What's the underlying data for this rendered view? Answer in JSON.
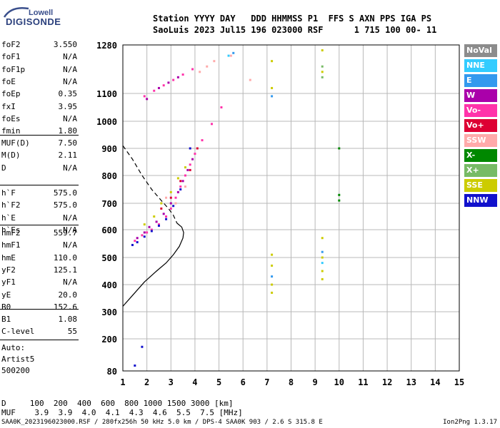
{
  "logo": {
    "top": "Lowell",
    "main": "DIGISONDE"
  },
  "header": {
    "line1": "Station YYYY DAY   DDD HHMMSS P1  FFS S AXN PPS IGA PS",
    "line2": "SaoLuis 2023 Jul15 196 023000 RSF      1 715 100 00- 11"
  },
  "params_a": [
    {
      "label": "foF2",
      "value": "3.550"
    },
    {
      "label": "foF1",
      "value": "N/A"
    },
    {
      "label": "foF1p",
      "value": "N/A"
    },
    {
      "label": "foE",
      "value": "N/A"
    },
    {
      "label": "foEp",
      "value": "0.35"
    },
    {
      "label": "fxI",
      "value": "3.95"
    },
    {
      "label": "foEs",
      "value": "N/A"
    },
    {
      "label": "fmin",
      "value": "1.80"
    }
  ],
  "params_b": [
    {
      "label": "MUF(D)",
      "value": "7.50"
    },
    {
      "label": "M(D)",
      "value": "2.11"
    },
    {
      "label": "D",
      "value": "N/A"
    }
  ],
  "params_c": [
    {
      "label": "h`F",
      "value": "575.0"
    },
    {
      "label": "h`F2",
      "value": "575.0"
    },
    {
      "label": "h`E",
      "value": "N/A"
    },
    {
      "label": "h`Es",
      "value": "N/A"
    }
  ],
  "params_d": [
    {
      "label": "hmF2",
      "value": "559.7"
    },
    {
      "label": "hmF1",
      "value": "N/A"
    },
    {
      "label": "hmE",
      "value": "110.0"
    },
    {
      "label": "yF2",
      "value": "125.1"
    },
    {
      "label": "yF1",
      "value": "N/A"
    },
    {
      "label": "yE",
      "value": "20.0"
    },
    {
      "label": "B0",
      "value": "152.6"
    },
    {
      "label": "B1",
      "value": "1.08"
    }
  ],
  "clevel": {
    "label": "C-level",
    "value": "55"
  },
  "autoscale": [
    "Auto:",
    "Artist5",
    "500200"
  ],
  "legend": [
    {
      "label": "NoVal",
      "color": "#8c8c8c"
    },
    {
      "label": "NNE",
      "color": "#33ccff"
    },
    {
      "label": "E",
      "color": "#3399ee"
    },
    {
      "label": "W",
      "color": "#aa00aa"
    },
    {
      "label": "Vo-",
      "color": "#ff33aa"
    },
    {
      "label": "Vo+",
      "color": "#dd0033"
    },
    {
      "label": "SSW",
      "color": "#ffaaaa"
    },
    {
      "label": "X-",
      "color": "#008800"
    },
    {
      "label": "X+",
      "color": "#77bb66"
    },
    {
      "label": "SSE",
      "color": "#cccc00"
    },
    {
      "label": "NNW",
      "color": "#1111cc"
    }
  ],
  "muf_table": {
    "d_row": "D     100  200  400  600  800 1000 1500 3000 [km]",
    "muf_row": "MUF    3.9  3.9  4.0  4.1  4.3  4.6  5.5  7.5 [MHz]"
  },
  "footer": {
    "left": "SAA0K_2023196023000.RSF / 280fx256h 50 kHz 5.0 km / DPS-4 SAA0K 903 / 2.6 S 315.8 E",
    "right": "Ion2Png 1.3.17"
  },
  "chart_data": {
    "type": "scatter",
    "xlim": [
      1,
      15
    ],
    "ylim": [
      80,
      1280
    ],
    "x_ticks": [
      1,
      2,
      3,
      4,
      5,
      6,
      7,
      8,
      9,
      10,
      11,
      12,
      13,
      14,
      15
    ],
    "y_ticks": [
      80,
      200,
      300,
      400,
      500,
      600,
      700,
      800,
      900,
      1000,
      1100,
      1280
    ],
    "grid": true,
    "legend_placement": "right",
    "series": [
      {
        "name": "Vo-",
        "points": [
          [
            1.5,
            560
          ],
          [
            1.8,
            580
          ],
          [
            2.0,
            590
          ],
          [
            2.2,
            600
          ],
          [
            2.5,
            620
          ],
          [
            2.8,
            650
          ],
          [
            3.0,
            680
          ],
          [
            3.2,
            720
          ],
          [
            3.4,
            760
          ],
          [
            3.6,
            800
          ],
          [
            3.8,
            840
          ],
          [
            4.0,
            880
          ],
          [
            4.3,
            930
          ],
          [
            4.7,
            990
          ],
          [
            5.1,
            1050
          ],
          [
            1.9,
            1090
          ],
          [
            2.3,
            1110
          ],
          [
            2.7,
            1130
          ],
          [
            3.1,
            1150
          ],
          [
            3.5,
            1170
          ],
          [
            3.9,
            1190
          ]
        ]
      },
      {
        "name": "W",
        "points": [
          [
            1.6,
            570
          ],
          [
            1.9,
            590
          ],
          [
            2.1,
            610
          ],
          [
            2.4,
            630
          ],
          [
            2.7,
            660
          ],
          [
            3.0,
            700
          ],
          [
            3.3,
            740
          ],
          [
            3.5,
            780
          ],
          [
            3.7,
            820
          ],
          [
            3.9,
            860
          ],
          [
            2.0,
            1080
          ],
          [
            2.5,
            1120
          ],
          [
            2.9,
            1140
          ],
          [
            3.3,
            1160
          ]
        ]
      },
      {
        "name": "NNW",
        "points": [
          [
            1.4,
            545
          ],
          [
            1.6,
            555
          ],
          [
            1.9,
            575
          ],
          [
            2.2,
            595
          ],
          [
            2.5,
            615
          ],
          [
            2.8,
            640
          ],
          [
            3.1,
            690
          ],
          [
            3.4,
            750
          ],
          [
            3.8,
            900
          ],
          [
            1.8,
            170
          ],
          [
            1.5,
            100
          ]
        ]
      },
      {
        "name": "SSE",
        "points": [
          [
            1.9,
            620
          ],
          [
            2.3,
            650
          ],
          [
            2.6,
            700
          ],
          [
            3.0,
            740
          ],
          [
            3.3,
            790
          ],
          [
            3.6,
            830
          ],
          [
            7.2,
            1220
          ],
          [
            7.2,
            1120
          ],
          [
            7.2,
            510
          ],
          [
            7.2,
            470
          ],
          [
            7.2,
            400
          ],
          [
            7.2,
            370
          ],
          [
            9.3,
            1260
          ],
          [
            9.3,
            1180
          ],
          [
            9.3,
            570
          ],
          [
            9.3,
            500
          ],
          [
            9.3,
            450
          ],
          [
            9.3,
            420
          ]
        ]
      },
      {
        "name": "SSW",
        "points": [
          [
            4.2,
            1180
          ],
          [
            4.5,
            1200
          ],
          [
            4.8,
            1220
          ],
          [
            5.5,
            1240
          ],
          [
            6.3,
            1150
          ],
          [
            2.8,
            720
          ],
          [
            3.2,
            700
          ],
          [
            3.6,
            760
          ]
        ]
      },
      {
        "name": "Vo+",
        "points": [
          [
            2.6,
            680
          ],
          [
            3.0,
            720
          ],
          [
            3.4,
            780
          ],
          [
            3.8,
            820
          ],
          [
            4.1,
            900
          ]
        ]
      },
      {
        "name": "E",
        "points": [
          [
            7.2,
            1090
          ],
          [
            7.2,
            430
          ],
          [
            9.3,
            520
          ],
          [
            5.6,
            1250
          ]
        ]
      },
      {
        "name": "NNE",
        "points": [
          [
            5.4,
            1240
          ],
          [
            9.3,
            480
          ]
        ]
      },
      {
        "name": "X-",
        "points": [
          [
            10.0,
            900
          ],
          [
            10.0,
            730
          ],
          [
            10.0,
            710
          ]
        ]
      },
      {
        "name": "X+",
        "points": [
          [
            9.3,
            1200
          ],
          [
            9.3,
            1160
          ]
        ]
      }
    ],
    "profile_solid": [
      [
        1.0,
        320
      ],
      [
        1.4,
        360
      ],
      [
        1.9,
        410
      ],
      [
        2.4,
        450
      ],
      [
        2.8,
        480
      ],
      [
        3.1,
        510
      ],
      [
        3.35,
        540
      ],
      [
        3.5,
        570
      ],
      [
        3.53,
        590
      ],
      [
        3.45,
        610
      ],
      [
        3.25,
        625
      ]
    ],
    "profile_dashed": [
      [
        1.0,
        910
      ],
      [
        1.4,
        860
      ],
      [
        1.8,
        800
      ],
      [
        2.2,
        750
      ],
      [
        2.6,
        710
      ],
      [
        2.9,
        680
      ],
      [
        3.1,
        655
      ],
      [
        3.25,
        625
      ]
    ]
  }
}
